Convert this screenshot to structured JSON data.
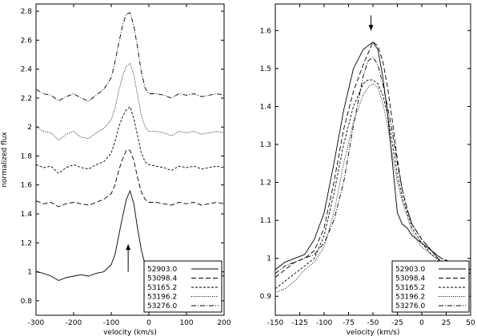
{
  "chart_data": [
    {
      "type": "line",
      "xlabel": "velocity (km/s)",
      "ylabel": "normalized flux",
      "xlim": [
        -300,
        200
      ],
      "ylim": [
        0.7,
        2.85
      ],
      "xticks": [
        "-300",
        "-200",
        "-100",
        "0",
        "100",
        "200"
      ],
      "yticks": [
        "0.8",
        "1",
        "1.2",
        "1.4",
        "1.6",
        "1.8",
        "2",
        "2.2",
        "2.4",
        "2.6",
        "2.8"
      ],
      "legend_position": "bottom-right",
      "annotation": {
        "type": "arrow-up",
        "x": -55,
        "y_from": 1.0,
        "y_to": 1.19
      },
      "series": [
        {
          "name": "52903.0",
          "dash": "solid",
          "x": [
            -300,
            -280,
            -260,
            -240,
            -220,
            -200,
            -180,
            -160,
            -140,
            -120,
            -100,
            -90,
            -80,
            -70,
            -60,
            -50,
            -40,
            -30,
            -20,
            -10,
            0,
            20,
            40,
            60,
            80,
            100,
            120,
            140,
            160,
            180,
            200
          ],
          "y": [
            1.0,
            0.99,
            0.97,
            0.94,
            0.96,
            0.97,
            0.98,
            0.97,
            0.99,
            1.0,
            1.05,
            1.12,
            1.25,
            1.38,
            1.5,
            1.56,
            1.47,
            1.3,
            1.15,
            1.05,
            1.01,
            0.99,
            0.98,
            0.97,
            0.99,
            0.98,
            0.99,
            0.98,
            0.97,
            0.98,
            0.97
          ]
        },
        {
          "name": "53098.4",
          "dash": "dashed",
          "x": [
            -300,
            -280,
            -260,
            -240,
            -220,
            -200,
            -180,
            -160,
            -140,
            -120,
            -100,
            -90,
            -80,
            -70,
            -60,
            -50,
            -40,
            -30,
            -20,
            -10,
            0,
            20,
            40,
            60,
            80,
            100,
            120,
            140,
            160,
            180,
            200
          ],
          "y": [
            1.49,
            1.47,
            1.48,
            1.45,
            1.47,
            1.48,
            1.47,
            1.46,
            1.48,
            1.5,
            1.54,
            1.6,
            1.7,
            1.78,
            1.84,
            1.84,
            1.77,
            1.65,
            1.55,
            1.5,
            1.48,
            1.48,
            1.47,
            1.46,
            1.48,
            1.47,
            1.48,
            1.46,
            1.47,
            1.48,
            1.47
          ]
        },
        {
          "name": "53165.2",
          "dash": "short-dashed",
          "x": [
            -300,
            -280,
            -260,
            -240,
            -220,
            -200,
            -180,
            -160,
            -140,
            -120,
            -100,
            -90,
            -80,
            -70,
            -60,
            -50,
            -40,
            -30,
            -20,
            -10,
            0,
            20,
            40,
            60,
            80,
            100,
            120,
            140,
            160,
            180,
            200
          ],
          "y": [
            1.74,
            1.72,
            1.73,
            1.68,
            1.72,
            1.74,
            1.72,
            1.71,
            1.74,
            1.76,
            1.82,
            1.9,
            2.0,
            2.07,
            2.12,
            2.14,
            2.06,
            1.94,
            1.82,
            1.76,
            1.74,
            1.73,
            1.72,
            1.7,
            1.73,
            1.72,
            1.73,
            1.71,
            1.72,
            1.73,
            1.72
          ]
        },
        {
          "name": "53196.2",
          "dash": "dotted",
          "x": [
            -300,
            -280,
            -260,
            -240,
            -220,
            -200,
            -180,
            -160,
            -140,
            -120,
            -100,
            -90,
            -80,
            -70,
            -60,
            -50,
            -40,
            -30,
            -20,
            -10,
            0,
            20,
            40,
            60,
            80,
            100,
            120,
            140,
            160,
            180,
            200
          ],
          "y": [
            2.0,
            1.97,
            1.96,
            1.91,
            1.95,
            1.97,
            1.93,
            1.92,
            1.96,
            1.99,
            2.05,
            2.13,
            2.25,
            2.35,
            2.42,
            2.44,
            2.36,
            2.22,
            2.08,
            2.0,
            1.97,
            1.97,
            1.96,
            1.94,
            1.97,
            1.96,
            1.97,
            1.95,
            1.96,
            1.97,
            1.96
          ]
        },
        {
          "name": "53276.0",
          "dash": "dash-dot",
          "x": [
            -300,
            -280,
            -260,
            -240,
            -220,
            -200,
            -180,
            -160,
            -140,
            -120,
            -100,
            -90,
            -80,
            -70,
            -60,
            -50,
            -40,
            -30,
            -20,
            -10,
            0,
            20,
            40,
            60,
            80,
            100,
            120,
            140,
            160,
            180,
            200
          ],
          "y": [
            2.26,
            2.23,
            2.22,
            2.18,
            2.21,
            2.23,
            2.2,
            2.18,
            2.22,
            2.26,
            2.34,
            2.45,
            2.58,
            2.7,
            2.78,
            2.79,
            2.7,
            2.55,
            2.38,
            2.27,
            2.23,
            2.23,
            2.22,
            2.2,
            2.23,
            2.22,
            2.23,
            2.21,
            2.22,
            2.23,
            2.22
          ]
        }
      ]
    },
    {
      "type": "line",
      "xlabel": "velocity (km/s)",
      "ylabel": "",
      "xlim": [
        -150,
        50
      ],
      "ylim": [
        0.85,
        1.67
      ],
      "xticks": [
        "-150",
        "-125",
        "-100",
        "-75",
        "-50",
        "-25",
        "0",
        "25",
        "50"
      ],
      "yticks": [
        "0.9",
        "1",
        "1.1",
        "1.2",
        "1.3",
        "1.4",
        "1.5",
        "1.6"
      ],
      "legend_position": "bottom-right",
      "annotation": {
        "type": "arrow-down",
        "x": -52,
        "y_from": 1.64,
        "y_to": 1.6
      },
      "series": [
        {
          "name": "52903.0",
          "dash": "solid",
          "x": [
            -150,
            -140,
            -130,
            -120,
            -110,
            -100,
            -90,
            -80,
            -70,
            -60,
            -55,
            -50,
            -45,
            -40,
            -35,
            -30,
            -25,
            -20,
            -15,
            -10,
            0,
            10,
            20,
            30,
            40,
            50
          ],
          "y": [
            0.97,
            0.99,
            1.0,
            1.01,
            1.05,
            1.12,
            1.25,
            1.39,
            1.5,
            1.55,
            1.56,
            1.57,
            1.55,
            1.48,
            1.38,
            1.25,
            1.12,
            1.09,
            1.08,
            1.06,
            1.04,
            1.02,
            0.99,
            0.98,
            0.98,
            0.97
          ]
        },
        {
          "name": "53098.4",
          "dash": "dashed",
          "x": [
            -150,
            -140,
            -130,
            -120,
            -110,
            -100,
            -90,
            -80,
            -70,
            -60,
            -55,
            -50,
            -45,
            -40,
            -35,
            -30,
            -25,
            -20,
            -15,
            -10,
            0,
            10,
            20,
            30,
            40,
            50
          ],
          "y": [
            0.95,
            0.97,
            0.99,
            1.0,
            1.02,
            1.08,
            1.2,
            1.34,
            1.44,
            1.51,
            1.54,
            1.57,
            1.56,
            1.52,
            1.45,
            1.36,
            1.26,
            1.18,
            1.13,
            1.09,
            1.05,
            1.02,
            1.0,
            0.99,
            0.98,
            0.97
          ]
        },
        {
          "name": "53165.2",
          "dash": "short-dashed",
          "x": [
            -150,
            -140,
            -130,
            -120,
            -110,
            -100,
            -90,
            -80,
            -70,
            -60,
            -55,
            -50,
            -45,
            -40,
            -35,
            -30,
            -25,
            -20,
            -15,
            -10,
            0,
            10,
            20,
            30,
            40,
            50
          ],
          "y": [
            0.92,
            0.94,
            0.96,
            0.98,
            1.0,
            1.06,
            1.17,
            1.3,
            1.4,
            1.46,
            1.47,
            1.47,
            1.46,
            1.43,
            1.38,
            1.3,
            1.22,
            1.16,
            1.12,
            1.08,
            1.04,
            1.01,
            0.99,
            0.98,
            0.97,
            0.96
          ]
        },
        {
          "name": "53196.2",
          "dash": "dotted",
          "x": [
            -150,
            -140,
            -130,
            -120,
            -110,
            -100,
            -90,
            -80,
            -70,
            -60,
            -55,
            -50,
            -45,
            -40,
            -35,
            -30,
            -25,
            -20,
            -15,
            -10,
            0,
            10,
            20,
            30,
            40,
            50
          ],
          "y": [
            0.91,
            0.92,
            0.94,
            0.97,
            0.99,
            1.03,
            1.12,
            1.25,
            1.36,
            1.43,
            1.45,
            1.46,
            1.45,
            1.41,
            1.35,
            1.27,
            1.2,
            1.15,
            1.11,
            1.07,
            1.03,
            1.01,
            0.99,
            0.97,
            0.96,
            0.96
          ]
        },
        {
          "name": "53276.0",
          "dash": "dash-dot",
          "x": [
            -150,
            -140,
            -130,
            -120,
            -110,
            -100,
            -90,
            -80,
            -70,
            -60,
            -55,
            -50,
            -45,
            -40,
            -35,
            -30,
            -25,
            -20,
            -15,
            -10,
            0,
            10,
            20,
            30,
            40,
            50
          ],
          "y": [
            0.96,
            0.98,
            0.99,
            1.0,
            1.01,
            1.04,
            1.1,
            1.2,
            1.35,
            1.48,
            1.52,
            1.53,
            1.51,
            1.46,
            1.4,
            1.33,
            1.25,
            1.18,
            1.13,
            1.09,
            1.05,
            1.02,
            1.0,
            0.99,
            0.98,
            0.97
          ]
        }
      ]
    }
  ]
}
